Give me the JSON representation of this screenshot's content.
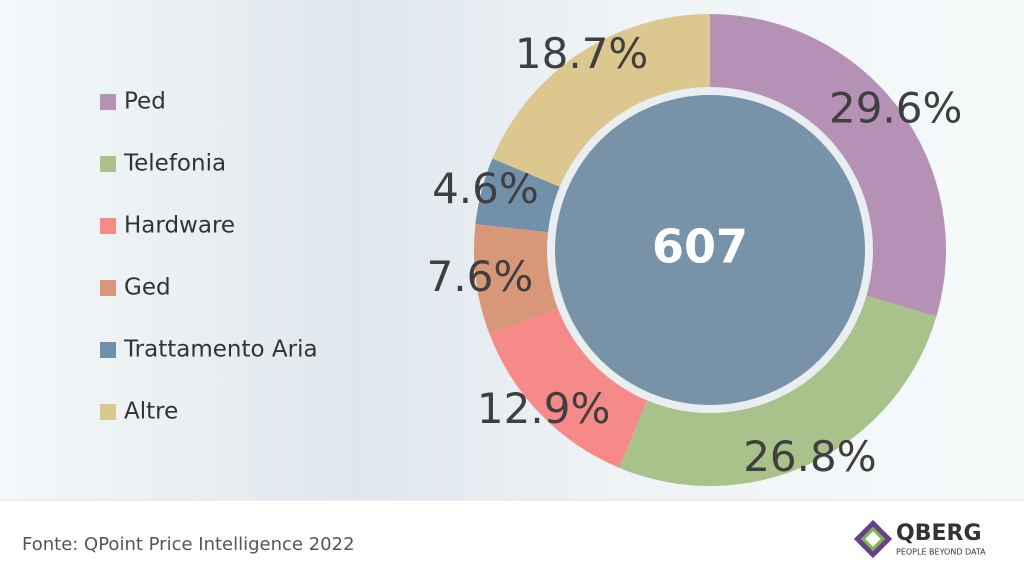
{
  "chart_data": {
    "type": "donut",
    "categories": [
      "Ped",
      "Telefonia",
      "Hardware",
      "Ged",
      "Trattamento Aria",
      "Altre"
    ],
    "values": [
      29.6,
      26.8,
      12.9,
      7.6,
      4.6,
      18.7
    ],
    "value_labels": [
      "29.6%",
      "26.8%",
      "12.9%",
      "7.6%",
      "4.6%",
      "18.7%"
    ],
    "colors": [
      "#b691b6",
      "#a9c18b",
      "#f68a88",
      "#d99779",
      "#7190aa",
      "#dcc88f"
    ],
    "center_label": "607",
    "legend": "left"
  },
  "footer": {
    "source": "Fonte: QPoint Price Intelligence 2022",
    "logo": "QBERG",
    "tagline": "PEOPLE BEYOND DATA"
  }
}
